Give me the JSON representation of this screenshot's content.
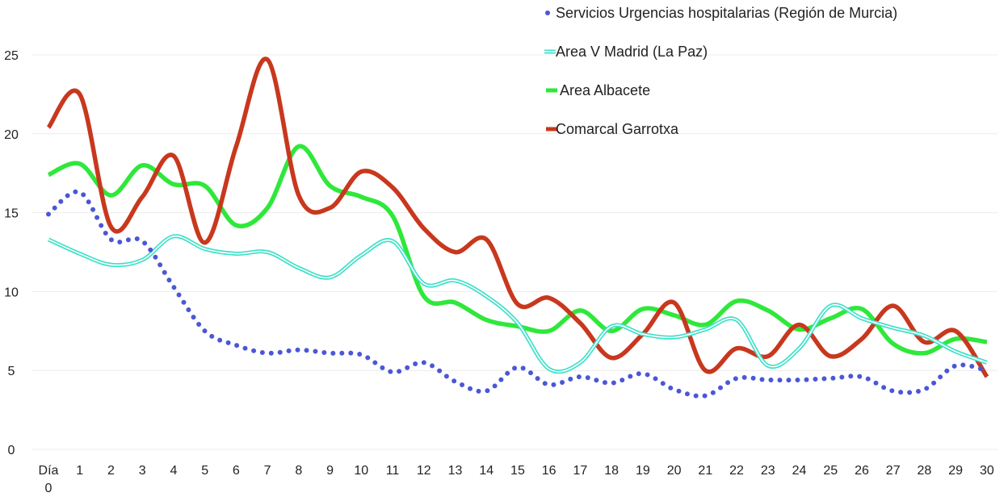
{
  "chart_data": {
    "type": "line",
    "title": "",
    "xlabel": "",
    "ylabel": "",
    "ylim": [
      0,
      25
    ],
    "yticks": [
      "0",
      "5",
      "10",
      "15",
      "20",
      "25"
    ],
    "grid": true,
    "legend_position": "top-right",
    "categories": [
      "Día 0",
      "1",
      "2",
      "3",
      "4",
      "5",
      "6",
      "7",
      "8",
      "9",
      "10",
      "11",
      "12",
      "13",
      "14",
      "15",
      "16",
      "17",
      "18",
      "19",
      "20",
      "21",
      "22",
      "23",
      "24",
      "25",
      "26",
      "27",
      "28",
      "29",
      "30"
    ],
    "series": [
      {
        "name": "Servicios Urgencias hospitalarias (Región de Murcia)",
        "color": "#4a57d6",
        "style": "dotted",
        "values": [
          14.9,
          16.3,
          13.3,
          13.2,
          10.3,
          7.5,
          6.6,
          6.1,
          6.3,
          6.1,
          6.0,
          4.9,
          5.5,
          4.3,
          3.7,
          5.2,
          4.1,
          4.6,
          4.2,
          4.8,
          3.8,
          3.4,
          4.5,
          4.4,
          4.4,
          4.5,
          4.6,
          3.7,
          3.8,
          5.3,
          5.0
        ]
      },
      {
        "name": "Area V Madrid (La Paz)",
        "color": "#40e0c8",
        "style": "double",
        "values": [
          13.3,
          12.4,
          11.7,
          12.0,
          13.5,
          12.7,
          12.4,
          12.5,
          11.5,
          10.9,
          12.3,
          13.2,
          10.5,
          10.7,
          9.7,
          8.0,
          5.1,
          5.5,
          7.8,
          7.3,
          7.1,
          7.6,
          8.2,
          5.3,
          6.4,
          9.1,
          8.3,
          7.7,
          7.2,
          6.2,
          5.5
        ]
      },
      {
        "name": "Area Albacete",
        "color": "#2ee83a",
        "style": "solid",
        "values": [
          17.4,
          18.1,
          16.1,
          18.0,
          16.8,
          16.7,
          14.2,
          15.3,
          19.2,
          16.7,
          16.0,
          14.8,
          9.7,
          9.3,
          8.2,
          7.8,
          7.5,
          8.8,
          7.5,
          8.9,
          8.5,
          7.9,
          9.4,
          8.8,
          7.6,
          8.3,
          8.9,
          6.7,
          6.1,
          7.0,
          6.8
        ]
      },
      {
        "name": "Comarcal Garrotxa",
        "color": "#c8381e",
        "style": "solid",
        "values": [
          20.4,
          22.5,
          14.1,
          16.0,
          18.6,
          13.1,
          19.2,
          24.7,
          16.1,
          15.3,
          17.6,
          16.6,
          14.0,
          12.5,
          13.3,
          9.2,
          9.6,
          8.0,
          5.8,
          7.3,
          9.3,
          5.0,
          6.4,
          5.9,
          7.9,
          5.9,
          7.0,
          9.1,
          6.8,
          7.5,
          4.6
        ]
      }
    ]
  }
}
